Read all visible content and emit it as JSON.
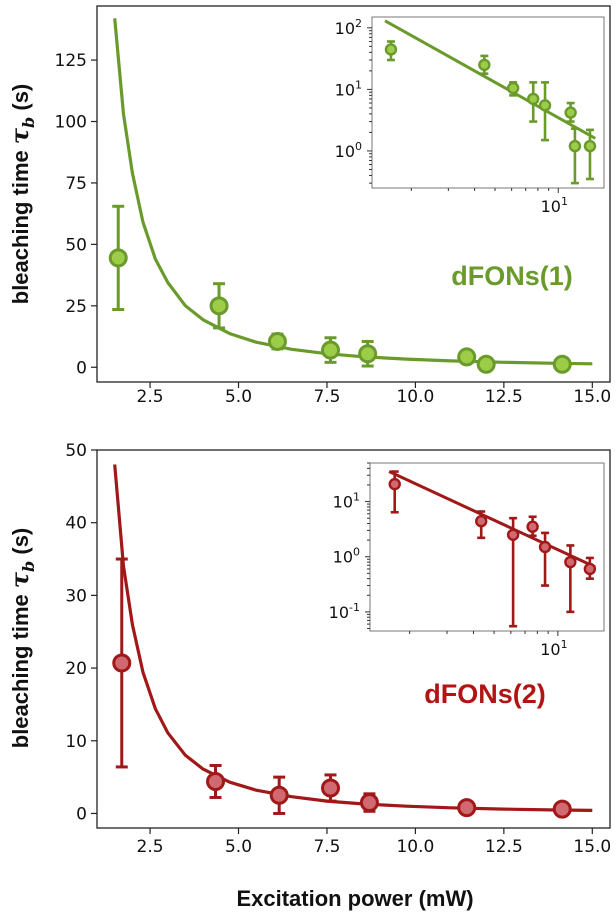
{
  "chart_data": [
    {
      "type": "scatter",
      "title": "",
      "xlabel": "",
      "ylabel": "bleaching time τ_b (s)",
      "ylabel_main": "bleaching time ",
      "ylabel_symbol": "τ",
      "ylabel_sub": "b",
      "ylabel_unit": " (s)",
      "xlim": [
        1.0,
        15.5
      ],
      "ylim": [
        -6,
        147
      ],
      "xticks": [
        "2.5",
        "5.0",
        "7.5",
        "10.0",
        "12.5",
        "15.0"
      ],
      "yticks": [
        "0",
        "25",
        "50",
        "75",
        "100",
        "125"
      ],
      "grid": false,
      "annotation": "dFONs(1)",
      "color": "#6a9a2c",
      "marker_fill": "#9ccc48",
      "series": [
        {
          "kind": "points-with-error",
          "x": [
            1.6,
            4.45,
            6.1,
            7.6,
            8.65,
            11.45,
            12.0,
            14.15
          ],
          "y": [
            44.5,
            25.0,
            10.5,
            7.0,
            5.5,
            4.2,
            1.2,
            1.2
          ],
          "yerr": [
            21.0,
            9.0,
            3.0,
            5.0,
            5.0,
            1.5,
            0.5,
            0.5
          ]
        },
        {
          "kind": "fit-curve",
          "x": [
            1.5,
            1.75,
            2.0,
            2.3,
            2.65,
            3.0,
            3.5,
            4.0,
            4.75,
            5.5,
            6.5,
            7.5,
            8.5,
            9.75,
            11.0,
            12.5,
            14.0,
            15.0
          ],
          "y": [
            142,
            103,
            79,
            59,
            44,
            34.5,
            25,
            19.3,
            13.7,
            10.2,
            7.3,
            5.5,
            4.3,
            3.3,
            2.6,
            2.0,
            1.6,
            1.4
          ]
        }
      ],
      "inset": {
        "type": "scatter",
        "xscale": "log",
        "yscale": "log",
        "xlim": [
          1.3,
          16.5
        ],
        "ylim": [
          0.25,
          150
        ],
        "xticks": [
          "10"
        ],
        "yticks": [
          "10",
          "10",
          "10"
        ],
        "ytick_exponents": [
          "2",
          "1",
          "0"
        ],
        "ytick_values": [
          100,
          10,
          1
        ],
        "xtick_values": [
          10
        ],
        "xtick_exponents": [
          "1"
        ],
        "points_x": [
          1.6,
          4.45,
          6.1,
          7.6,
          8.65,
          11.45,
          12.0,
          14.15
        ],
        "points_y": [
          44.5,
          25.0,
          10.5,
          7.0,
          5.5,
          4.2,
          1.2,
          1.2
        ],
        "err_lo": [
          30,
          18,
          8,
          3.0,
          1.5,
          3.0,
          0.3,
          0.35
        ],
        "err_hi": [
          60,
          35,
          13,
          13,
          13,
          6,
          2.3,
          2.2
        ],
        "fit_x": [
          1.5,
          15.0
        ],
        "fit_y": [
          130,
          1.6
        ]
      }
    },
    {
      "type": "scatter",
      "title": "",
      "xlabel": "Excitation power (mW)",
      "ylabel": "bleaching time τ_b (s)",
      "ylabel_main": "bleaching time ",
      "ylabel_symbol": "τ",
      "ylabel_sub": "b",
      "ylabel_unit": " (s)",
      "xlim": [
        1.0,
        15.5
      ],
      "ylim": [
        -2,
        50
      ],
      "xticks": [
        "2.5",
        "5.0",
        "7.5",
        "10.0",
        "12.5",
        "15.0"
      ],
      "yticks": [
        "0",
        "10",
        "20",
        "30",
        "40",
        "50"
      ],
      "grid": false,
      "annotation": "dFONs(2)",
      "color": "#a01818",
      "marker_fill": "#d06a70",
      "series": [
        {
          "kind": "points-with-error",
          "x": [
            1.7,
            4.35,
            6.15,
            7.6,
            8.7,
            11.45,
            14.15
          ],
          "y": [
            20.7,
            4.4,
            2.5,
            3.5,
            1.5,
            0.8,
            0.6
          ],
          "yerr": [
            14.3,
            2.2,
            2.5,
            1.8,
            1.2,
            0.2,
            0.2
          ]
        },
        {
          "kind": "fit-curve",
          "x": [
            1.5,
            1.75,
            2.0,
            2.3,
            2.65,
            3.0,
            3.5,
            4.0,
            4.75,
            5.5,
            6.5,
            7.5,
            8.5,
            9.75,
            11.0,
            12.5,
            14.0,
            15.0
          ],
          "y": [
            48,
            34,
            26,
            19.4,
            14.4,
            11.1,
            8.0,
            6.1,
            4.3,
            3.2,
            2.3,
            1.7,
            1.32,
            1.0,
            0.78,
            0.6,
            0.48,
            0.42
          ]
        }
      ],
      "inset": {
        "type": "scatter",
        "xscale": "log",
        "yscale": "log",
        "xlim": [
          1.3,
          16.5
        ],
        "ylim": [
          0.045,
          50
        ],
        "xticks": [
          "10"
        ],
        "yticks": [
          "10",
          "10",
          "10"
        ],
        "ytick_exponents": [
          "1",
          "0",
          "-1"
        ],
        "ytick_values": [
          10,
          1,
          0.1
        ],
        "xtick_values": [
          10
        ],
        "xtick_exponents": [
          "1"
        ],
        "points_x": [
          1.7,
          4.35,
          6.15,
          7.6,
          8.7,
          11.45,
          14.15
        ],
        "points_y": [
          20.7,
          4.4,
          2.5,
          3.5,
          1.5,
          0.8,
          0.6
        ],
        "err_lo": [
          6.4,
          2.2,
          0.055,
          2.4,
          0.3,
          0.1,
          0.4
        ],
        "err_hi": [
          35,
          6.6,
          5.0,
          5.3,
          2.7,
          1.6,
          0.95
        ],
        "fit_x": [
          1.6,
          15.0
        ],
        "fit_y": [
          35,
          0.65
        ]
      }
    }
  ]
}
